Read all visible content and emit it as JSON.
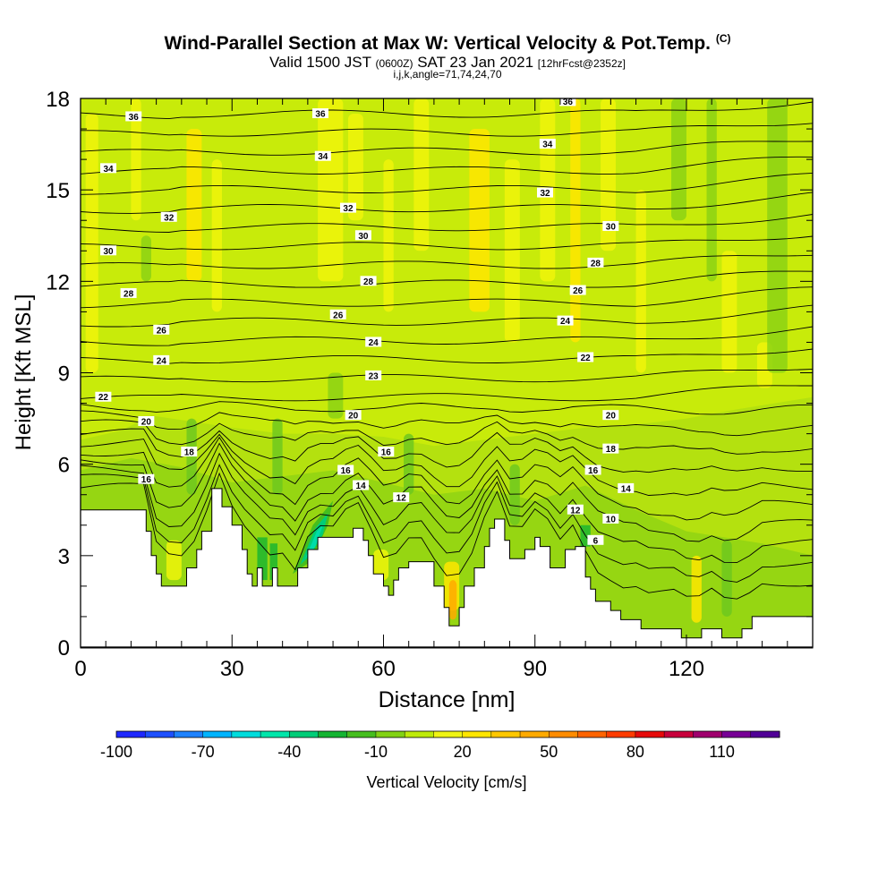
{
  "chart_data": {
    "type": "heatmap",
    "title": "Wind-Parallel Section at Max W: Vertical Velocity & Pot.Temp.",
    "title_mark": "(C)",
    "subtitle_main": "Valid 1500 JST",
    "subtitle_z": "(0600Z)",
    "subtitle_date": "SAT 23 Jan 2021",
    "subtitle_fcst": "[12hrFcst@2352z]",
    "subtitle2": "i,j,k,angle=71,74,24,70",
    "xlabel": "Distance [nm]",
    "ylabel": "Height [Kft MSL]",
    "xlim": [
      0,
      145
    ],
    "ylim": [
      0,
      18
    ],
    "x_ticks": [
      0,
      30,
      60,
      90,
      120
    ],
    "y_ticks": [
      0,
      3,
      6,
      9,
      12,
      15,
      18
    ],
    "colorbar_label": "Vertical Velocity [cm/s]",
    "colorbar_ticks": [
      -100,
      -70,
      -40,
      -10,
      20,
      50,
      80,
      110
    ],
    "colorbar_colors": [
      "#1e28ff",
      "#1e50ff",
      "#1e82ff",
      "#00b4ff",
      "#00dcdc",
      "#00e6aa",
      "#00cd78",
      "#14b432",
      "#46be1e",
      "#82d214",
      "#beeb0a",
      "#f0f514",
      "#ffe600",
      "#ffc800",
      "#ffaa00",
      "#ff8c00",
      "#ff6400",
      "#ff3c00",
      "#e60a0a",
      "#c8003c",
      "#a0006e",
      "#780096",
      "#500096"
    ],
    "terrain_kft": [
      [
        0,
        4.5
      ],
      [
        13,
        4.5
      ],
      [
        13,
        3.8
      ],
      [
        14,
        3.8
      ],
      [
        14,
        3.0
      ],
      [
        15,
        3.0
      ],
      [
        15,
        2.4
      ],
      [
        16,
        2.4
      ],
      [
        16,
        2.0
      ],
      [
        21,
        2.0
      ],
      [
        21,
        2.6
      ],
      [
        23,
        2.6
      ],
      [
        23,
        3.2
      ],
      [
        24,
        3.2
      ],
      [
        24,
        3.8
      ],
      [
        26,
        3.8
      ],
      [
        26,
        5.2
      ],
      [
        28,
        5.2
      ],
      [
        28,
        4.6
      ],
      [
        30,
        4.6
      ],
      [
        30,
        4.0
      ],
      [
        32,
        4.0
      ],
      [
        32,
        3.2
      ],
      [
        33,
        3.2
      ],
      [
        33,
        2.4
      ],
      [
        34,
        2.4
      ],
      [
        34,
        2.0
      ],
      [
        35,
        2.0
      ],
      [
        35,
        2.6
      ],
      [
        36,
        2.6
      ],
      [
        36,
        2.0
      ],
      [
        38,
        2.0
      ],
      [
        38,
        2.6
      ],
      [
        39,
        2.6
      ],
      [
        39,
        2.0
      ],
      [
        43,
        2.0
      ],
      [
        43,
        2.6
      ],
      [
        45,
        2.6
      ],
      [
        45,
        3.2
      ],
      [
        47,
        3.2
      ],
      [
        47,
        3.6
      ],
      [
        54,
        3.6
      ],
      [
        54,
        3.9
      ],
      [
        56,
        3.9
      ],
      [
        56,
        3.5
      ],
      [
        57,
        3.5
      ],
      [
        57,
        3.0
      ],
      [
        58,
        3.0
      ],
      [
        58,
        2.4
      ],
      [
        60,
        2.4
      ],
      [
        60,
        2.0
      ],
      [
        61,
        2.0
      ],
      [
        61,
        1.7
      ],
      [
        62,
        1.7
      ],
      [
        62,
        2.2
      ],
      [
        63,
        2.2
      ],
      [
        63,
        2.6
      ],
      [
        65,
        2.6
      ],
      [
        65,
        2.8
      ],
      [
        70,
        2.8
      ],
      [
        70,
        2.0
      ],
      [
        72,
        2.0
      ],
      [
        72,
        1.3
      ],
      [
        73,
        1.3
      ],
      [
        73,
        0.7
      ],
      [
        75,
        0.7
      ],
      [
        75,
        1.3
      ],
      [
        76,
        1.3
      ],
      [
        76,
        2.0
      ],
      [
        78,
        2.0
      ],
      [
        78,
        2.6
      ],
      [
        80,
        2.6
      ],
      [
        80,
        3.3
      ],
      [
        81,
        3.3
      ],
      [
        81,
        3.9
      ],
      [
        82,
        3.9
      ],
      [
        82,
        4.2
      ],
      [
        84,
        4.2
      ],
      [
        84,
        3.5
      ],
      [
        85,
        3.5
      ],
      [
        85,
        2.9
      ],
      [
        88,
        2.9
      ],
      [
        88,
        3.2
      ],
      [
        90,
        3.2
      ],
      [
        90,
        3.6
      ],
      [
        91,
        3.6
      ],
      [
        91,
        3.3
      ],
      [
        93,
        3.3
      ],
      [
        93,
        2.6
      ],
      [
        96,
        2.6
      ],
      [
        96,
        3.2
      ],
      [
        98,
        3.2
      ],
      [
        98,
        3.3
      ],
      [
        100,
        3.3
      ],
      [
        100,
        2.3
      ],
      [
        101,
        2.3
      ],
      [
        101,
        1.9
      ],
      [
        102,
        1.9
      ],
      [
        102,
        1.5
      ],
      [
        105,
        1.5
      ],
      [
        105,
        1.2
      ],
      [
        107,
        1.2
      ],
      [
        107,
        0.9
      ],
      [
        111,
        0.9
      ],
      [
        111,
        0.6
      ],
      [
        119,
        0.6
      ],
      [
        119,
        0.3
      ],
      [
        123,
        0.3
      ],
      [
        123,
        0.6
      ],
      [
        127,
        0.6
      ],
      [
        127,
        0.3
      ],
      [
        131,
        0.3
      ],
      [
        131,
        0.6
      ],
      [
        133,
        0.6
      ],
      [
        133,
        1.0
      ],
      [
        145,
        1.0
      ]
    ],
    "theta_labels": [
      {
        "v": "36",
        "x": 10.5,
        "y": 17.4
      },
      {
        "v": "34",
        "x": 5.5,
        "y": 15.7
      },
      {
        "v": "32",
        "x": 17.5,
        "y": 14.1
      },
      {
        "v": "30",
        "x": 5.5,
        "y": 13.0
      },
      {
        "v": "28",
        "x": 9.5,
        "y": 11.6
      },
      {
        "v": "26",
        "x": 16,
        "y": 10.4
      },
      {
        "v": "24",
        "x": 16,
        "y": 9.4
      },
      {
        "v": "22",
        "x": 4.5,
        "y": 8.2
      },
      {
        "v": "20",
        "x": 13,
        "y": 7.4
      },
      {
        "v": "18",
        "x": 21.5,
        "y": 6.4
      },
      {
        "v": "16",
        "x": 13,
        "y": 5.5
      },
      {
        "v": "36",
        "x": 47.5,
        "y": 17.5
      },
      {
        "v": "34",
        "x": 48,
        "y": 16.1
      },
      {
        "v": "32",
        "x": 53,
        "y": 14.4
      },
      {
        "v": "30",
        "x": 56,
        "y": 13.5
      },
      {
        "v": "28",
        "x": 57,
        "y": 12.0
      },
      {
        "v": "26",
        "x": 51,
        "y": 10.9
      },
      {
        "v": "24",
        "x": 58,
        "y": 10.0
      },
      {
        "v": "23",
        "x": 58,
        "y": 8.9
      },
      {
        "v": "20",
        "x": 54,
        "y": 7.6
      },
      {
        "v": "16",
        "x": 60.5,
        "y": 6.4
      },
      {
        "v": "16",
        "x": 52.5,
        "y": 5.8
      },
      {
        "v": "14",
        "x": 55.5,
        "y": 5.3
      },
      {
        "v": "12",
        "x": 63.5,
        "y": 4.9
      },
      {
        "v": "36",
        "x": 96.5,
        "y": 17.9
      },
      {
        "v": "34",
        "x": 92.5,
        "y": 16.5
      },
      {
        "v": "32",
        "x": 92,
        "y": 14.9
      },
      {
        "v": "30",
        "x": 105,
        "y": 13.8
      },
      {
        "v": "28",
        "x": 102,
        "y": 12.6
      },
      {
        "v": "26",
        "x": 98.5,
        "y": 11.7
      },
      {
        "v": "24",
        "x": 96,
        "y": 10.7
      },
      {
        "v": "22",
        "x": 100,
        "y": 9.5
      },
      {
        "v": "20",
        "x": 105,
        "y": 7.6
      },
      {
        "v": "18",
        "x": 105,
        "y": 6.5
      },
      {
        "v": "16",
        "x": 101.5,
        "y": 5.8
      },
      {
        "v": "14",
        "x": 108,
        "y": 5.2
      },
      {
        "v": "12",
        "x": 98,
        "y": 4.5
      },
      {
        "v": "10",
        "x": 105,
        "y": 4.2
      },
      {
        "v": "6",
        "x": 102,
        "y": 3.5
      }
    ]
  }
}
